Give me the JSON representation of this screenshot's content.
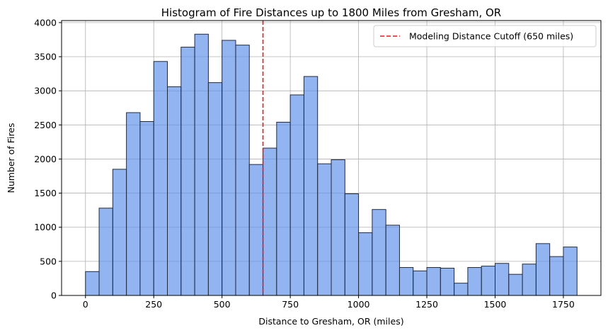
{
  "chart_data": {
    "type": "bar",
    "title": "Histogram of Fire Distances up to 1800 Miles from Gresham, OR",
    "xlabel": "Distance to Gresham, OR (miles)",
    "ylabel": "Number of Fires",
    "bin_width": 50,
    "bin_starts": [
      0,
      50,
      100,
      150,
      200,
      250,
      300,
      350,
      400,
      450,
      500,
      550,
      600,
      650,
      700,
      750,
      800,
      850,
      900,
      950,
      1000,
      1050,
      1100,
      1150,
      1200,
      1250,
      1300,
      1350,
      1400,
      1450,
      1500,
      1550,
      1600,
      1650,
      1700,
      1750
    ],
    "values": [
      350,
      1280,
      1850,
      2680,
      2550,
      3430,
      3060,
      3640,
      3830,
      3120,
      3740,
      3670,
      1920,
      2160,
      2540,
      2940,
      3210,
      1930,
      1990,
      1490,
      920,
      1260,
      1030,
      410,
      360,
      410,
      400,
      180,
      410,
      430,
      470,
      310,
      460,
      760,
      570,
      710
    ],
    "xlim": [
      -87.5,
      1887.5
    ],
    "ylim": [
      0,
      4030
    ],
    "xticks": [
      0,
      250,
      500,
      750,
      1000,
      1250,
      1500,
      1750
    ],
    "xtick_labels": [
      "0",
      "250",
      "500",
      "750",
      "1000",
      "1250",
      "1500",
      "1750"
    ],
    "yticks": [
      0,
      500,
      1000,
      1500,
      2000,
      2500,
      3000,
      3500,
      4000
    ],
    "ytick_labels": [
      "0",
      "500",
      "1000",
      "1500",
      "2000",
      "2500",
      "3000",
      "3500",
      "4000"
    ],
    "grid": true,
    "cutoff": {
      "x": 650,
      "label": "Modeling Distance Cutoff (650 miles)",
      "color": "#e31a1c"
    },
    "legend_position": "top-right",
    "colors": {
      "bar_fill": "#6495ed",
      "bar_edge": "#1f2a44",
      "grid": "#b0b0b0"
    }
  }
}
